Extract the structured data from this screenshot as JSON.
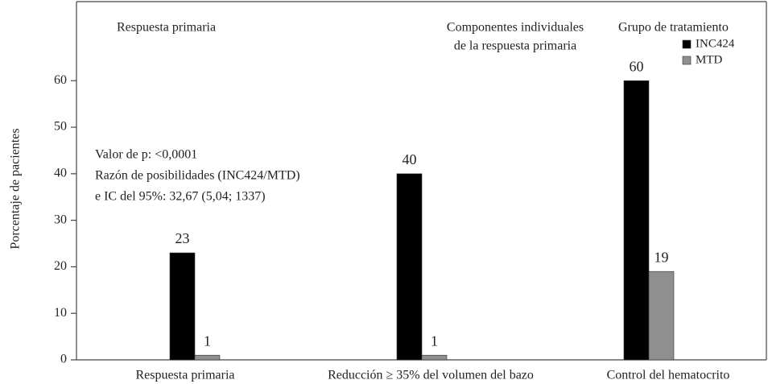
{
  "chart_data": {
    "type": "bar",
    "y_label": "Porcentaje de pacientes",
    "categories": [
      "Respuesta primaria",
      "Reducción ≥ 35% del volumen del bazo",
      "Control del hematocrito"
    ],
    "series": [
      {
        "name": "INC424",
        "color": "#000000",
        "values": [
          23,
          40,
          60
        ]
      },
      {
        "name": "MTD",
        "color": "#8f8f8f",
        "values": [
          1,
          1,
          19
        ]
      }
    ],
    "legend_title": "Grupo de tratamiento",
    "legend": "top-right",
    "annotations": [
      [
        "Respuesta primaria"
      ],
      [
        "Componentes individuales",
        "de la respuesta primaria"
      ],
      [
        "Valor de p: <0,0001",
        "Razón de posibilidades (INC424/MTD)",
        "e IC del 95%: 32,67 (5,04; 1337)"
      ]
    ],
    "ylim": [
      0,
      77
    ],
    "yticks": [
      0,
      10,
      20,
      30,
      40,
      50,
      60
    ],
    "grid": false
  }
}
